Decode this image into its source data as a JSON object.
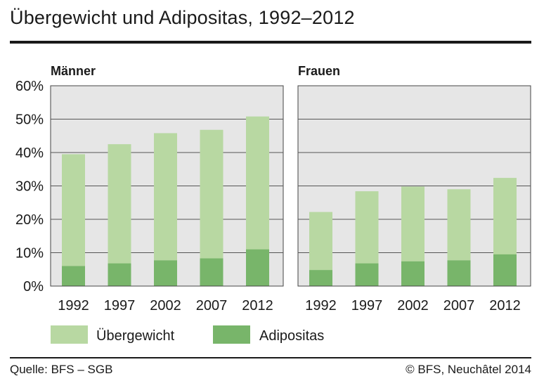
{
  "title": "Übergewicht und Adipositas, 1992–2012",
  "footer": {
    "source": "Quelle: BFS – SGB",
    "copyright": "© BFS, Neuchâtel 2014"
  },
  "colors": {
    "uebergewicht": "#b8d8a2",
    "adipositas": "#78b56a",
    "plot_bg": "#e6e6e6",
    "grid": "#555555"
  },
  "chart_data": [
    {
      "type": "bar",
      "stacking": "overlay",
      "title": "Männer",
      "categories": [
        "1992",
        "1997",
        "2002",
        "2007",
        "2012"
      ],
      "yticks": [
        "0%",
        "10%",
        "20%",
        "30%",
        "40%",
        "50%",
        "60%"
      ],
      "ylim": [
        0,
        60
      ],
      "series": [
        {
          "name": "Übergewicht",
          "values": [
            39.5,
            42.5,
            45.8,
            46.8,
            50.8
          ]
        },
        {
          "name": "Adipositas",
          "values": [
            6.0,
            6.8,
            7.7,
            8.3,
            11.0
          ]
        }
      ]
    },
    {
      "type": "bar",
      "stacking": "overlay",
      "title": "Frauen",
      "categories": [
        "1992",
        "1997",
        "2002",
        "2007",
        "2012"
      ],
      "ylim": [
        0,
        60
      ],
      "series": [
        {
          "name": "Übergewicht",
          "values": [
            22.2,
            28.4,
            29.8,
            29.0,
            32.4
          ]
        },
        {
          "name": "Adipositas",
          "values": [
            4.8,
            6.8,
            7.4,
            7.7,
            9.5
          ]
        }
      ]
    }
  ],
  "legend": [
    {
      "label": "Übergewicht",
      "color": "#b8d8a2"
    },
    {
      "label": "Adipositas",
      "color": "#78b56a"
    }
  ]
}
